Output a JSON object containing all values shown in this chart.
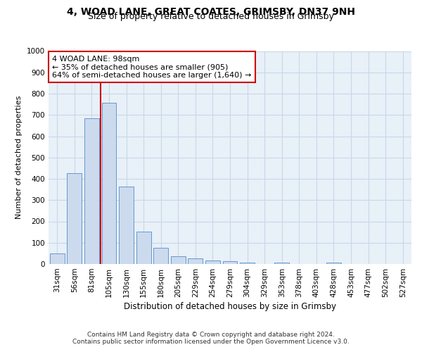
{
  "title1": "4, WOAD LANE, GREAT COATES, GRIMSBY, DN37 9NH",
  "title2": "Size of property relative to detached houses in Grimsby",
  "xlabel": "Distribution of detached houses by size in Grimsby",
  "ylabel": "Number of detached properties",
  "bar_heights": [
    50,
    425,
    685,
    758,
    363,
    153,
    76,
    37,
    27,
    18,
    12,
    7,
    0,
    8,
    0,
    0,
    8,
    0,
    0,
    0,
    0
  ],
  "bar_labels": [
    "31sqm",
    "56sqm",
    "81sqm",
    "105sqm",
    "130sqm",
    "155sqm",
    "180sqm",
    "205sqm",
    "229sqm",
    "254sqm",
    "279sqm",
    "304sqm",
    "329sqm",
    "353sqm",
    "378sqm",
    "403sqm",
    "428sqm",
    "453sqm",
    "477sqm",
    "502sqm",
    "527sqm"
  ],
  "bar_color": "#ccdaee",
  "bar_edge_color": "#6699cc",
  "vline_color": "#cc0000",
  "vline_pos": 2.5,
  "annotation_text": "4 WOAD LANE: 98sqm\n← 35% of detached houses are smaller (905)\n64% of semi-detached houses are larger (1,640) →",
  "annotation_box_color": "#ffffff",
  "annotation_box_edge": "#cc0000",
  "ylim": [
    0,
    1000
  ],
  "yticks": [
    0,
    100,
    200,
    300,
    400,
    500,
    600,
    700,
    800,
    900,
    1000
  ],
  "grid_color": "#c8d8e8",
  "bg_color": "#e8f0f8",
  "footnote": "Contains HM Land Registry data © Crown copyright and database right 2024.\nContains public sector information licensed under the Open Government Licence v3.0.",
  "title1_fontsize": 10,
  "title2_fontsize": 9,
  "xlabel_fontsize": 8.5,
  "ylabel_fontsize": 8,
  "tick_fontsize": 7.5,
  "annotation_fontsize": 8,
  "footnote_fontsize": 6.5
}
